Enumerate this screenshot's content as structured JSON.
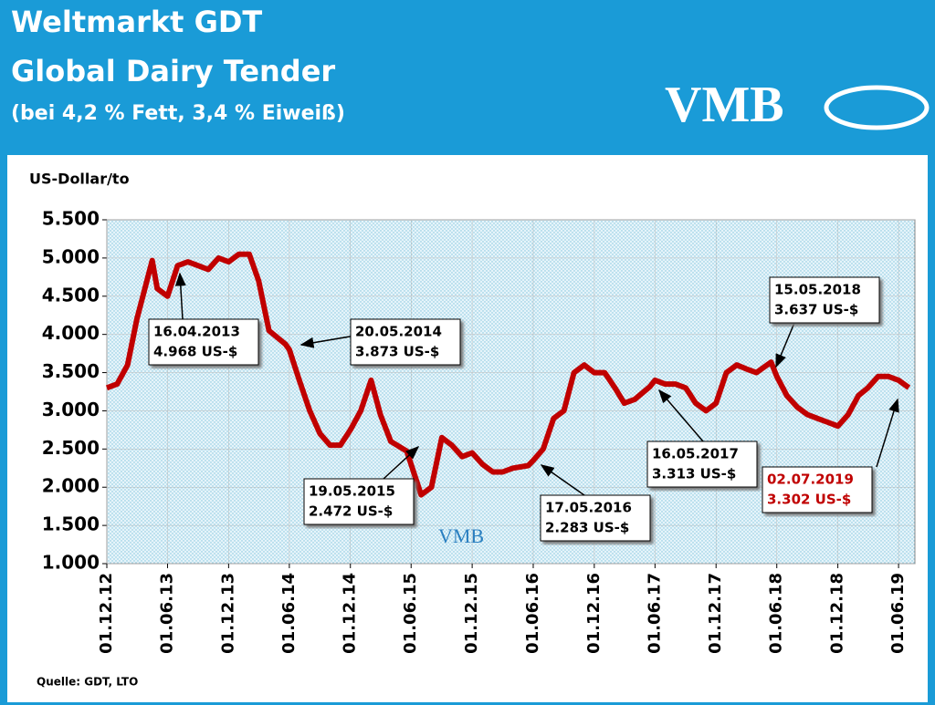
{
  "header": {
    "title": "Weltmarkt GDT",
    "subtitle": "Global Dairy Tender",
    "note": "(bei 4,2 % Fett, 3,4 % Eiweiß)",
    "logo": "VMB"
  },
  "chart_data": {
    "type": "line",
    "y_label": "US-Dollar/to",
    "source": "Quelle: GDT, LTO",
    "watermark": "VMB",
    "x": [
      "2012-12-01",
      "2013-01-01",
      "2013-02-01",
      "2013-03-01",
      "2013-04-16",
      "2013-05-01",
      "2013-06-01",
      "2013-07-01",
      "2013-08-01",
      "2013-09-01",
      "2013-10-01",
      "2013-11-01",
      "2013-12-01",
      "2014-01-01",
      "2014-02-01",
      "2014-03-01",
      "2014-04-01",
      "2014-05-20",
      "2014-06-01",
      "2014-07-01",
      "2014-08-01",
      "2014-09-01",
      "2014-10-01",
      "2014-11-01",
      "2014-12-01",
      "2015-01-01",
      "2015-02-01",
      "2015-03-01",
      "2015-04-01",
      "2015-05-19",
      "2015-06-01",
      "2015-07-01",
      "2015-08-01",
      "2015-09-01",
      "2015-10-01",
      "2015-11-01",
      "2015-12-01",
      "2016-01-01",
      "2016-02-01",
      "2016-03-01",
      "2016-04-01",
      "2016-05-17",
      "2016-06-01",
      "2016-07-01",
      "2016-08-01",
      "2016-09-01",
      "2016-10-01",
      "2016-11-01",
      "2016-12-01",
      "2017-01-01",
      "2017-02-01",
      "2017-03-01",
      "2017-04-01",
      "2017-05-16",
      "2017-06-01",
      "2017-07-01",
      "2017-08-01",
      "2017-09-01",
      "2017-10-01",
      "2017-11-01",
      "2017-12-01",
      "2018-01-01",
      "2018-02-01",
      "2018-03-01",
      "2018-04-01",
      "2018-05-15",
      "2018-06-01",
      "2018-07-01",
      "2018-08-01",
      "2018-09-01",
      "2018-10-01",
      "2018-11-01",
      "2018-12-01",
      "2019-01-01",
      "2019-02-01",
      "2019-03-01",
      "2019-04-01",
      "2019-05-01",
      "2019-06-01",
      "2019-07-02"
    ],
    "series": [
      {
        "name": "GDT",
        "color": "#c00000",
        "values": [
          3300,
          3350,
          3600,
          4200,
          4968,
          4600,
          4500,
          4900,
          4950,
          4900,
          4850,
          5000,
          4950,
          5050,
          5050,
          4700,
          4050,
          3873,
          3800,
          3400,
          3000,
          2700,
          2550,
          2550,
          2750,
          3000,
          3400,
          2950,
          2600,
          2472,
          2300,
          1900,
          2000,
          2650,
          2550,
          2400,
          2450,
          2300,
          2200,
          2200,
          2250,
          2283,
          2350,
          2500,
          2900,
          3000,
          3500,
          3600,
          3500,
          3500,
          3300,
          3100,
          3150,
          3313,
          3400,
          3350,
          3350,
          3300,
          3100,
          3000,
          3100,
          3500,
          3600,
          3550,
          3500,
          3637,
          3450,
          3200,
          3050,
          2950,
          2900,
          2850,
          2800,
          2950,
          3200,
          3300,
          3450,
          3450,
          3400,
          3302
        ]
      }
    ],
    "xlim": [
      "2012-12-01",
      "2019-07-20"
    ],
    "xticks": [
      {
        "value": "2012-12-01",
        "label": "01.12.12"
      },
      {
        "value": "2013-06-01",
        "label": "01.06.13"
      },
      {
        "value": "2013-12-01",
        "label": "01.12.13"
      },
      {
        "value": "2014-06-01",
        "label": "01.06.14"
      },
      {
        "value": "2014-12-01",
        "label": "01.12.14"
      },
      {
        "value": "2015-06-01",
        "label": "01.06.15"
      },
      {
        "value": "2015-12-01",
        "label": "01.12.15"
      },
      {
        "value": "2016-06-01",
        "label": "01.06.16"
      },
      {
        "value": "2016-12-01",
        "label": "01.12.16"
      },
      {
        "value": "2017-06-01",
        "label": "01.06.17"
      },
      {
        "value": "2017-12-01",
        "label": "01.12.17"
      },
      {
        "value": "2018-06-01",
        "label": "01.06.18"
      },
      {
        "value": "2018-12-01",
        "label": "01.12.18"
      },
      {
        "value": "2019-06-01",
        "label": "01.06.19"
      }
    ],
    "ylim": [
      1000,
      5500
    ],
    "yticks": [
      {
        "value": 1000,
        "label": "1.000"
      },
      {
        "value": 1500,
        "label": "1.500"
      },
      {
        "value": 2000,
        "label": "2.000"
      },
      {
        "value": 2500,
        "label": "2.500"
      },
      {
        "value": 3000,
        "label": "3.000"
      },
      {
        "value": 3500,
        "label": "3.500"
      },
      {
        "value": 4000,
        "label": "4.000"
      },
      {
        "value": 4500,
        "label": "4.500"
      },
      {
        "value": 5000,
        "label": "5.000"
      },
      {
        "value": 5500,
        "label": "5.500"
      }
    ],
    "annotations": [
      {
        "lines": [
          "16.04.2013",
          "4.968 US-$"
        ]
      },
      {
        "lines": [
          "20.05.2014",
          "3.873 US-$"
        ]
      },
      {
        "lines": [
          "19.05.2015",
          "2.472 US-$"
        ]
      },
      {
        "lines": [
          "17.05.2016",
          "2.283 US-$"
        ]
      },
      {
        "lines": [
          "16.05.2017",
          "3.313 US-$"
        ]
      },
      {
        "lines": [
          "15.05.2018",
          "3.637 US-$"
        ]
      },
      {
        "lines": [
          "02.07.2019",
          "3.302 US-$"
        ],
        "color": "#c00000"
      }
    ]
  }
}
